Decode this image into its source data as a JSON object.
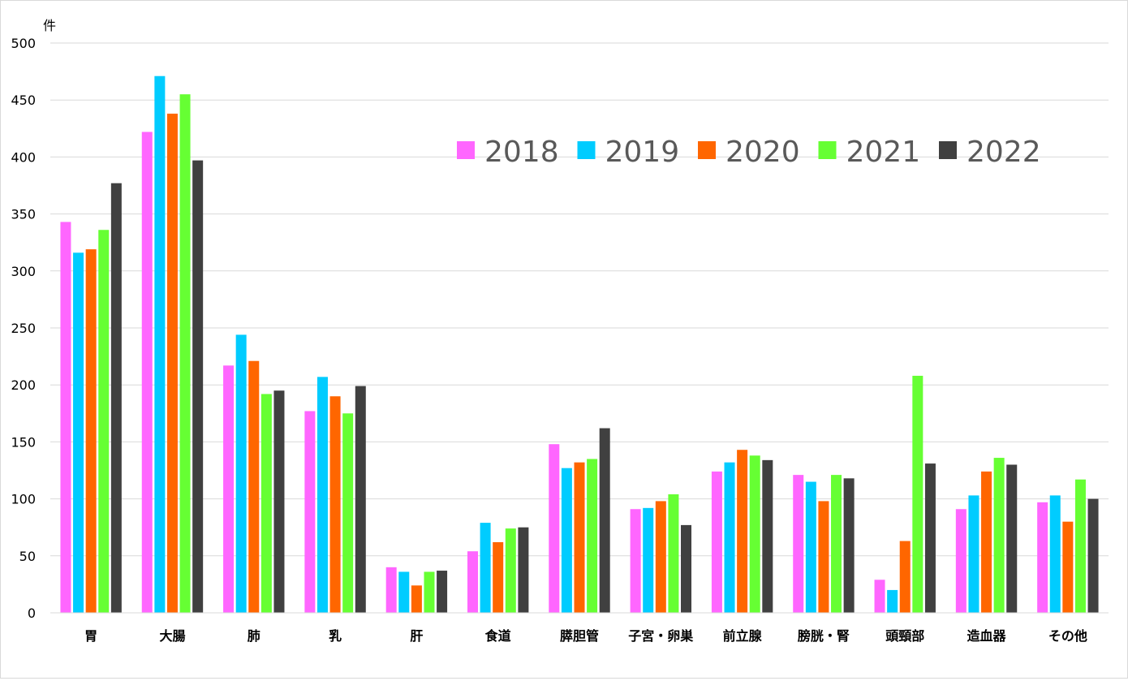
{
  "chart_data": {
    "type": "bar",
    "ylabel": "件",
    "ylim": [
      0,
      500
    ],
    "yticks": [
      0,
      50,
      100,
      150,
      200,
      250,
      300,
      350,
      400,
      450,
      500
    ],
    "grid": true,
    "legend_position": "top-right",
    "categories": [
      "胃",
      "大腸",
      "肺",
      "乳",
      "肝",
      "食道",
      "膵胆管",
      "子宮・卵巣",
      "前立腺",
      "膀胱・腎",
      "頭頸部",
      "造血器",
      "その他"
    ],
    "series": [
      {
        "name": "2018",
        "color": "#ff66ff",
        "values": [
          343,
          422,
          217,
          177,
          40,
          54,
          148,
          91,
          124,
          121,
          29,
          91,
          97
        ]
      },
      {
        "name": "2019",
        "color": "#00ccff",
        "values": [
          316,
          471,
          244,
          207,
          36,
          79,
          127,
          92,
          132,
          115,
          20,
          103,
          103
        ]
      },
      {
        "name": "2020",
        "color": "#ff6600",
        "values": [
          319,
          438,
          221,
          190,
          24,
          62,
          132,
          98,
          143,
          98,
          63,
          124,
          80
        ]
      },
      {
        "name": "2021",
        "color": "#66ff33",
        "values": [
          336,
          455,
          192,
          175,
          36,
          74,
          135,
          104,
          138,
          121,
          208,
          136,
          117
        ]
      },
      {
        "name": "2022",
        "color": "#404040",
        "values": [
          377,
          397,
          195,
          199,
          37,
          75,
          162,
          77,
          134,
          118,
          131,
          130,
          100
        ]
      }
    ]
  }
}
